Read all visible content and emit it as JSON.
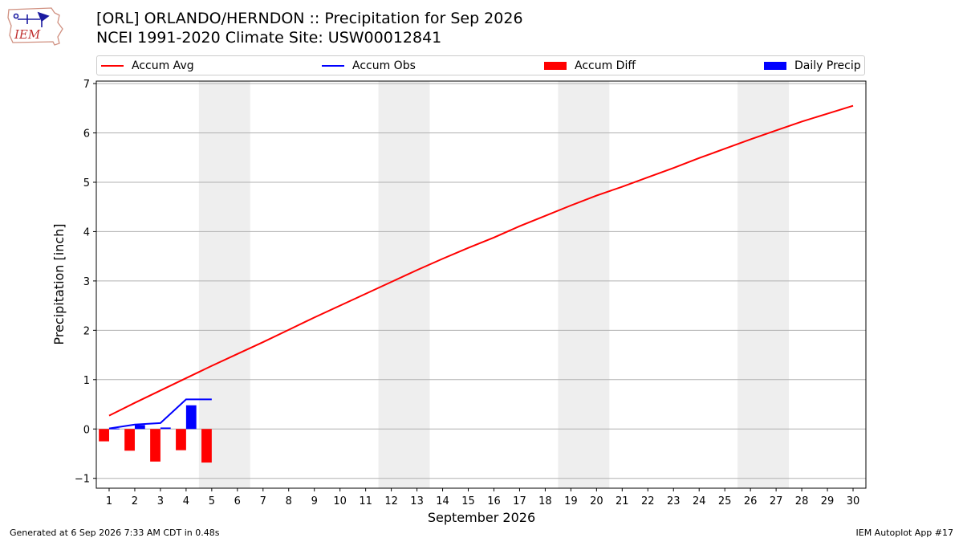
{
  "header": {
    "logo_text": "IEM",
    "title_line1": "[ORL] ORLANDO/HERNDON :: Precipitation for Sep 2026",
    "title_line2": "NCEI 1991-2020 Climate Site: USW00012841"
  },
  "legend": {
    "items": [
      {
        "label": "Accum Avg",
        "kind": "line",
        "color": "#ff0000"
      },
      {
        "label": "Accum Obs",
        "kind": "line",
        "color": "#0000ff"
      },
      {
        "label": "Accum Diff",
        "kind": "patch",
        "color": "#ff0000"
      },
      {
        "label": "Daily Precip",
        "kind": "patch",
        "color": "#0000ff"
      }
    ]
  },
  "footer": {
    "left": "Generated at 6 Sep 2026 7:33 AM CDT in 0.48s",
    "right": "IEM Autoplot App #17"
  },
  "chart_data": {
    "type": "bar",
    "xlabel": "September 2026",
    "ylabel": "Precipitation [inch]",
    "xlim": [
      0.5,
      30.5
    ],
    "ylim": [
      -1.2,
      7.05
    ],
    "y_ticks": [
      -1,
      0,
      1,
      2,
      3,
      4,
      5,
      6,
      7
    ],
    "x_ticks": [
      1,
      2,
      3,
      4,
      5,
      6,
      7,
      8,
      9,
      10,
      11,
      12,
      13,
      14,
      15,
      16,
      17,
      18,
      19,
      20,
      21,
      22,
      23,
      24,
      25,
      26,
      27,
      28,
      29,
      30
    ],
    "grid": "horizontal",
    "legend_position": "top",
    "weekend_shading": [
      [
        5,
        6
      ],
      [
        12,
        13
      ],
      [
        19,
        20
      ],
      [
        26,
        27
      ]
    ],
    "days": [
      1,
      2,
      3,
      4,
      5,
      6,
      7,
      8,
      9,
      10,
      11,
      12,
      13,
      14,
      15,
      16,
      17,
      18,
      19,
      20,
      21,
      22,
      23,
      24,
      25,
      26,
      27,
      28,
      29,
      30
    ],
    "series": [
      {
        "name": "Accum Avg",
        "type": "line",
        "color": "#ff0000",
        "values": [
          0.27,
          0.53,
          0.78,
          1.03,
          1.28,
          1.52,
          1.76,
          2.01,
          2.26,
          2.5,
          2.74,
          2.98,
          3.22,
          3.45,
          3.67,
          3.88,
          4.11,
          4.32,
          4.53,
          4.73,
          4.91,
          5.1,
          5.29,
          5.49,
          5.68,
          5.87,
          6.05,
          6.23,
          6.39,
          6.55
        ]
      },
      {
        "name": "Accum Obs",
        "type": "line",
        "color": "#0000ff",
        "values": [
          0.01,
          0.09,
          0.12,
          0.6,
          0.6
        ]
      },
      {
        "name": "Accum Diff",
        "type": "bar",
        "color": "#ff0000",
        "values": [
          -0.25,
          -0.44,
          -0.66,
          -0.43,
          -0.68
        ]
      },
      {
        "name": "Daily Precip",
        "type": "bar",
        "color": "#0000ff",
        "values": [
          0.01,
          0.08,
          0.03,
          0.48,
          0.0
        ]
      }
    ]
  }
}
